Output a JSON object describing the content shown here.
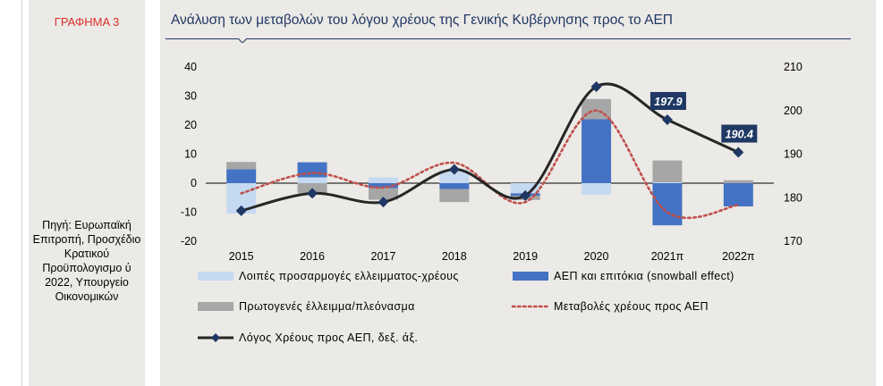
{
  "figure": {
    "label": "ΓΡΑΦΗΜΑ 3",
    "source": "Πηγή: Ευρωπαϊκή Επιτροπή, Προσχέδιο Κρατικού Προϋπολογισμο ύ 2022, Υπουργείο Οικονομικών"
  },
  "chart_data": {
    "type": "bar",
    "title": "Ανάλυση των μεταβολών του λόγου χρέους της Γενικής Κυβέρνησης προς το ΑΕΠ",
    "categories": [
      "2015",
      "2016",
      "2017",
      "2018",
      "2019",
      "2020",
      "2021π",
      "2022π"
    ],
    "y_left": {
      "ylim": [
        -20,
        40
      ],
      "ticks": [
        -20,
        -10,
        0,
        10,
        20,
        30,
        40
      ]
    },
    "y_right": {
      "ylim": [
        170,
        210
      ],
      "ticks": [
        170,
        180,
        190,
        200,
        210
      ]
    },
    "grid": false,
    "legend_position": "bottom",
    "series": [
      {
        "name": "Λοιπές προσαρμογές ελλειμματος-χρέους",
        "kind": "stacked-bar",
        "axis": "left",
        "color": "#c5d9f1",
        "values": [
          -10.5,
          2.0,
          2.0,
          4.5,
          -3.5,
          -4.0,
          0.3,
          0.0
        ]
      },
      {
        "name": "ΑΕΠ και επιτόκια (snowball effect)",
        "kind": "stacked-bar",
        "axis": "left",
        "color": "#4472c4",
        "values": [
          4.8,
          5.2,
          -1.7,
          -2.0,
          -0.8,
          22.0,
          -14.5,
          -8.0
        ]
      },
      {
        "name": "Πρωτογενές έλλειμμα/πλεόνασμα",
        "kind": "stacked-bar",
        "axis": "left",
        "color": "#a6a6a6",
        "values": [
          2.5,
          -3.5,
          -4.0,
          -4.5,
          -1.5,
          7.0,
          7.5,
          1.0
        ]
      },
      {
        "name": "Μεταβολές χρέους προς ΑΕΠ",
        "kind": "dotted-line",
        "axis": "left",
        "color": "#c0504d",
        "values": [
          -3.5,
          3.5,
          -1.5,
          7.0,
          -6.5,
          25.0,
          -10.0,
          -7.5
        ]
      },
      {
        "name": "Λόγος Χρέους προς ΑΕΠ, δεξ. άξ.",
        "kind": "line-markers",
        "axis": "right",
        "color": "#262626",
        "marker_color": "#1f3864",
        "values": [
          177.0,
          181.0,
          179.0,
          186.5,
          180.5,
          205.5,
          197.9,
          190.4
        ]
      }
    ],
    "callouts": [
      {
        "category": "2021π",
        "text": "197.9"
      },
      {
        "category": "2022π",
        "text": "190.4"
      }
    ]
  }
}
